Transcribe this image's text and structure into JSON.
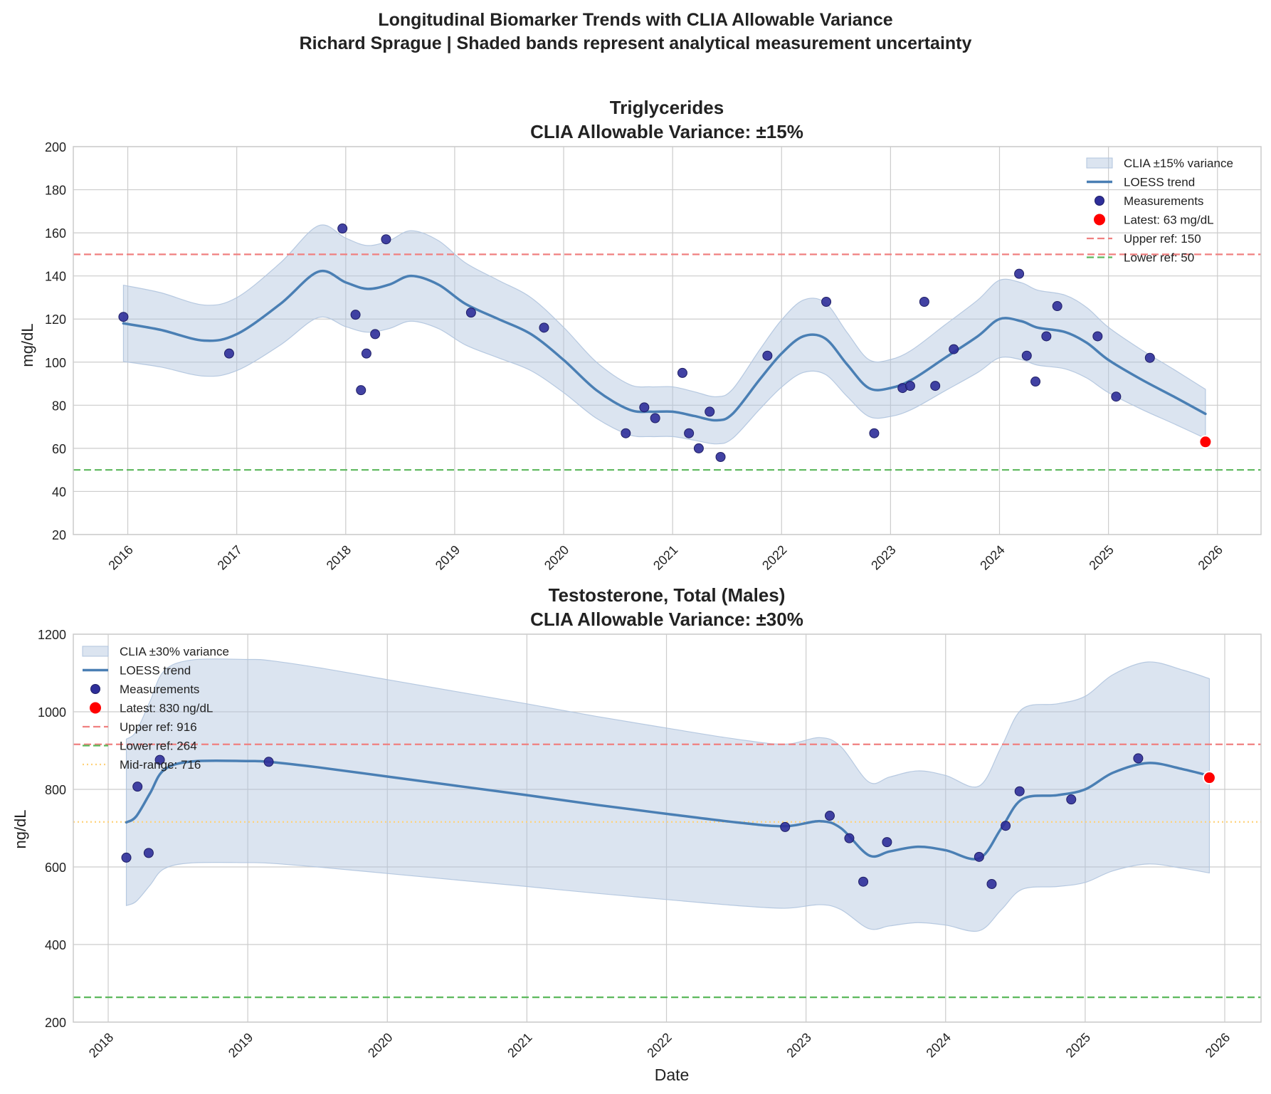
{
  "figure": {
    "title_line1": "Longitudinal Biomarker Trends with CLIA Allowable Variance",
    "title_line2": "Richard Sprague | Shaded bands represent analytical measurement uncertainty"
  },
  "colors": {
    "band": "#b0c4de",
    "trend": "#4a7fb4",
    "marker": "#2e2e99",
    "latest": "#ff0000",
    "upper_ref": "#f08080",
    "lower_ref": "#5cb85c",
    "mid_ref": "#ffd27a",
    "grid": "#cccccc"
  },
  "chart_data": [
    {
      "type": "scatter",
      "title": "Triglycerides",
      "subtitle": "CLIA Allowable Variance: ±15%",
      "xlabel": "",
      "ylabel": "mg/dL",
      "xlim": [
        2015.5,
        2026.4
      ],
      "ylim": [
        20,
        200
      ],
      "yticks": [
        20,
        40,
        60,
        80,
        100,
        120,
        140,
        160,
        180,
        200
      ],
      "xticks": [
        2016,
        2017,
        2018,
        2019,
        2020,
        2021,
        2022,
        2023,
        2024,
        2025,
        2026
      ],
      "variance_pct": 15,
      "measurements": [
        [
          2015.96,
          121
        ],
        [
          2016.93,
          104
        ],
        [
          2017.97,
          162
        ],
        [
          2018.09,
          122
        ],
        [
          2018.14,
          87
        ],
        [
          2018.19,
          104
        ],
        [
          2018.27,
          113
        ],
        [
          2018.37,
          157
        ],
        [
          2019.15,
          123
        ],
        [
          2019.82,
          116
        ],
        [
          2020.57,
          67
        ],
        [
          2020.74,
          79
        ],
        [
          2020.84,
          74
        ],
        [
          2021.09,
          95
        ],
        [
          2021.15,
          67
        ],
        [
          2021.24,
          60
        ],
        [
          2021.34,
          77
        ],
        [
          2021.44,
          56
        ],
        [
          2021.87,
          103
        ],
        [
          2022.41,
          128
        ],
        [
          2022.85,
          67
        ],
        [
          2023.11,
          88
        ],
        [
          2023.18,
          89
        ],
        [
          2023.31,
          128
        ],
        [
          2023.41,
          89
        ],
        [
          2023.58,
          106
        ],
        [
          2024.18,
          141
        ],
        [
          2024.25,
          103
        ],
        [
          2024.33,
          91
        ],
        [
          2024.43,
          112
        ],
        [
          2024.53,
          126
        ],
        [
          2024.9,
          112
        ],
        [
          2025.07,
          84
        ],
        [
          2025.38,
          102
        ]
      ],
      "latest": {
        "x": 2025.89,
        "y": 63,
        "label": "Latest: 63 mg/dL"
      },
      "trend": [
        [
          2015.96,
          118
        ],
        [
          2016.3,
          115
        ],
        [
          2016.7,
          110
        ],
        [
          2017.0,
          113
        ],
        [
          2017.4,
          127
        ],
        [
          2017.75,
          142
        ],
        [
          2018.0,
          137
        ],
        [
          2018.2,
          134
        ],
        [
          2018.4,
          136
        ],
        [
          2018.6,
          140
        ],
        [
          2018.85,
          136
        ],
        [
          2019.1,
          127
        ],
        [
          2019.4,
          120
        ],
        [
          2019.7,
          113
        ],
        [
          2020.0,
          101
        ],
        [
          2020.3,
          87
        ],
        [
          2020.6,
          78
        ],
        [
          2020.8,
          77
        ],
        [
          2021.0,
          77
        ],
        [
          2021.2,
          75
        ],
        [
          2021.4,
          73
        ],
        [
          2021.55,
          76
        ],
        [
          2021.8,
          92
        ],
        [
          2022.0,
          104
        ],
        [
          2022.2,
          112
        ],
        [
          2022.4,
          111
        ],
        [
          2022.6,
          99
        ],
        [
          2022.8,
          88
        ],
        [
          2023.0,
          88
        ],
        [
          2023.2,
          92
        ],
        [
          2023.5,
          102
        ],
        [
          2023.8,
          112
        ],
        [
          2024.0,
          120
        ],
        [
          2024.2,
          119
        ],
        [
          2024.35,
          116
        ],
        [
          2024.6,
          114
        ],
        [
          2024.8,
          109
        ],
        [
          2025.0,
          101
        ],
        [
          2025.3,
          92
        ],
        [
          2025.6,
          84
        ],
        [
          2025.89,
          76
        ]
      ],
      "ref_lines": [
        {
          "value": 150,
          "label": "Upper ref: 150",
          "kind": "upper"
        },
        {
          "value": 50,
          "label": "Lower ref: 50",
          "kind": "lower"
        }
      ],
      "legend": {
        "position": "top-right",
        "band": "CLIA ±15% variance",
        "trend": "LOESS trend",
        "measurements": "Measurements"
      }
    },
    {
      "type": "scatter",
      "title": "Testosterone, Total (Males)",
      "subtitle": "CLIA Allowable Variance: ±30%",
      "xlabel": "Date",
      "ylabel": "ng/dL",
      "xlim": [
        2017.75,
        2026.26
      ],
      "ylim": [
        200,
        1200
      ],
      "yticks": [
        200,
        400,
        600,
        800,
        1000,
        1200
      ],
      "xticks": [
        2018,
        2019,
        2020,
        2021,
        2022,
        2023,
        2024,
        2025,
        2026
      ],
      "variance_pct": 30,
      "measurements": [
        [
          2018.13,
          624
        ],
        [
          2018.21,
          807
        ],
        [
          2018.29,
          636
        ],
        [
          2018.37,
          876
        ],
        [
          2019.15,
          871
        ],
        [
          2022.85,
          703
        ],
        [
          2023.17,
          732
        ],
        [
          2023.31,
          674
        ],
        [
          2023.41,
          562
        ],
        [
          2023.58,
          664
        ],
        [
          2024.24,
          626
        ],
        [
          2024.33,
          556
        ],
        [
          2024.43,
          706
        ],
        [
          2024.53,
          795
        ],
        [
          2024.9,
          774
        ],
        [
          2025.38,
          880
        ]
      ],
      "latest": {
        "x": 2025.89,
        "y": 830,
        "label": "Latest: 830 ng/dL"
      },
      "trend": [
        [
          2018.13,
          715
        ],
        [
          2018.2,
          730
        ],
        [
          2018.3,
          790
        ],
        [
          2018.4,
          850
        ],
        [
          2018.6,
          872
        ],
        [
          2019.0,
          873
        ],
        [
          2019.15,
          871
        ],
        [
          2019.5,
          857
        ],
        [
          2020.0,
          833
        ],
        [
          2020.5,
          809
        ],
        [
          2021.0,
          785
        ],
        [
          2021.5,
          760
        ],
        [
          2022.0,
          737
        ],
        [
          2022.5,
          715
        ],
        [
          2022.85,
          705
        ],
        [
          2023.1,
          718
        ],
        [
          2023.25,
          700
        ],
        [
          2023.45,
          630
        ],
        [
          2023.6,
          640
        ],
        [
          2023.8,
          652
        ],
        [
          2024.0,
          643
        ],
        [
          2024.24,
          622
        ],
        [
          2024.4,
          700
        ],
        [
          2024.55,
          775
        ],
        [
          2024.8,
          785
        ],
        [
          2025.0,
          800
        ],
        [
          2025.2,
          843
        ],
        [
          2025.45,
          868
        ],
        [
          2025.7,
          852
        ],
        [
          2025.89,
          835
        ]
      ],
      "ref_lines": [
        {
          "value": 916,
          "label": "Upper ref: 916",
          "kind": "upper"
        },
        {
          "value": 264,
          "label": "Lower ref: 264",
          "kind": "lower"
        },
        {
          "value": 716,
          "label": "Mid-range: 716",
          "kind": "mid"
        }
      ],
      "legend": {
        "position": "top-left",
        "band": "CLIA ±30% variance",
        "trend": "LOESS trend",
        "measurements": "Measurements"
      }
    }
  ]
}
